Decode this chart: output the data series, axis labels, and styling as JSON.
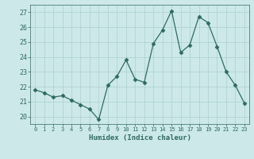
{
  "x": [
    0,
    1,
    2,
    3,
    4,
    5,
    6,
    7,
    8,
    9,
    10,
    11,
    12,
    13,
    14,
    15,
    16,
    17,
    18,
    19,
    20,
    21,
    22,
    23
  ],
  "y": [
    21.8,
    21.6,
    21.3,
    21.4,
    21.1,
    20.8,
    20.5,
    19.8,
    22.1,
    22.7,
    23.8,
    22.5,
    22.3,
    24.9,
    25.8,
    27.1,
    24.3,
    24.8,
    26.7,
    26.3,
    24.7,
    23.0,
    22.1,
    20.9
  ],
  "line_color": "#2e6b5e",
  "marker": "D",
  "marker_size": 2.5,
  "bg_color": "#cce8e8",
  "grid_color": "#aacfcf",
  "xlabel": "Humidex (Indice chaleur)",
  "ylim": [
    19.5,
    27.5
  ],
  "xlim": [
    -0.5,
    23.5
  ],
  "yticks": [
    20,
    21,
    22,
    23,
    24,
    25,
    26,
    27
  ],
  "xticks": [
    0,
    1,
    2,
    3,
    4,
    5,
    6,
    7,
    8,
    9,
    10,
    11,
    12,
    13,
    14,
    15,
    16,
    17,
    18,
    19,
    20,
    21,
    22,
    23
  ],
  "tick_color": "#2e6b5e",
  "label_color": "#2e6b5e"
}
